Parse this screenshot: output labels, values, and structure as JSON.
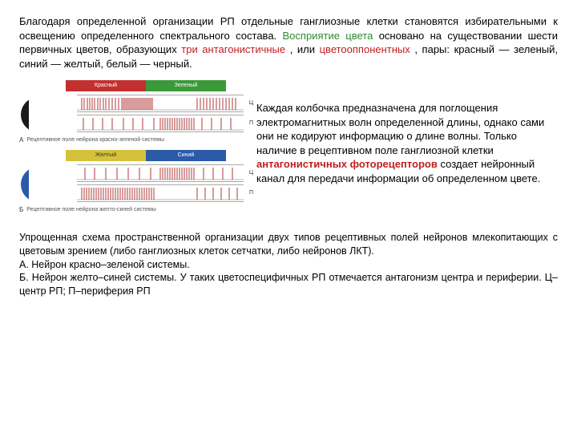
{
  "top": {
    "s1": "Благодаря определенной организации РП отдельные ганглиозные клетки становятся избирательными к освещению определенного спектрального состава. ",
    "s2_green": "Восприятие цвета",
    "s2_mid": " основано на существовании шести первичных цветов, образующих ",
    "s2_red1": "три антагонистичные",
    "s2_mid2": ", или ",
    "s2_red2": "цветооппонентных",
    "s2_tail": ", пары: красный — зеленый, синий — желтый, белый — черный."
  },
  "mid": {
    "p1": "Каждая колбочка предназначена для поглощения электромагнитных волн определенной длины, однако сами они не кодируют информацию о длине волны. Только наличие в рецептивном поле ганглиозной клетки ",
    "p1_red": "антагонистичных фоторецепторов",
    "p1_tail": " создает нейронный канал для передачи информации об определенном цвете."
  },
  "bottom": {
    "l1": "Упрощенная схема пространственной организации двух типов рецептивных полей нейронов млекопитающих с цветовым зрением (либо ганглиозных клеток сетчатки, либо нейронов ЛКТ).",
    "l2": "А. Нейрон красно–зеленой системы.",
    "l3": "Б. Нейрон желто–синей системы. У таких цветоспецифичных РП отмечается антагонизм центра и периферии. Ц–центр РП; П–периферия РП"
  },
  "diagram": {
    "barA": {
      "left_label": "Красный",
      "right_label": "Зеленый",
      "left_color": "#c23030",
      "right_color": "#3a9a3a"
    },
    "barB": {
      "left_label": "Желтый",
      "right_label": "Синий",
      "left_color": "#d6c23a",
      "right_color": "#2a5aa8"
    },
    "captionA": "Рецептивное поле нейрона красно-зеленой системы",
    "captionB": "Рецептивное поле нейрона желто-синей системы",
    "labA": "А",
    "labB": "Б",
    "labC": "Ц",
    "labP": "П",
    "rfA": {
      "outer": "#1a1a1a",
      "inner": "#c23030",
      "dot": "#ffffff"
    },
    "rfB": {
      "outer": "#2a5aa8",
      "inner": "#d6c23a",
      "dot": "#ffffff"
    },
    "spike_color": "#b03838",
    "baseline_color": "#b8b8b8",
    "spikesA_C": [
      6,
      9,
      13,
      16,
      19,
      22,
      26,
      29,
      33,
      36,
      40,
      44,
      48,
      52,
      56,
      58,
      60,
      62,
      64,
      66,
      68,
      70,
      72,
      74,
      76,
      78,
      80,
      82,
      84,
      86,
      88,
      90,
      92,
      94,
      150,
      154,
      158,
      162,
      166,
      170,
      174,
      178,
      182,
      186,
      190,
      194,
      198
    ],
    "spikesA_P": [
      8,
      20,
      32,
      44,
      58,
      70,
      82,
      96,
      104,
      107,
      110,
      113,
      116,
      119,
      122,
      125,
      128,
      131,
      134,
      137,
      140,
      143,
      146,
      156,
      168,
      180,
      192
    ],
    "spikesB_C": [
      10,
      22,
      36,
      50,
      64,
      78,
      92,
      104,
      107,
      110,
      113,
      116,
      119,
      122,
      125,
      128,
      131,
      134,
      137,
      140,
      143,
      146,
      158,
      170,
      182,
      194
    ],
    "spikesB_P": [
      6,
      9,
      12,
      15,
      18,
      21,
      24,
      27,
      30,
      33,
      36,
      39,
      42,
      45,
      48,
      51,
      54,
      57,
      60,
      63,
      66,
      69,
      72,
      75,
      78,
      81,
      84,
      87,
      90,
      93,
      96,
      150,
      160,
      170,
      180,
      190,
      200
    ]
  }
}
